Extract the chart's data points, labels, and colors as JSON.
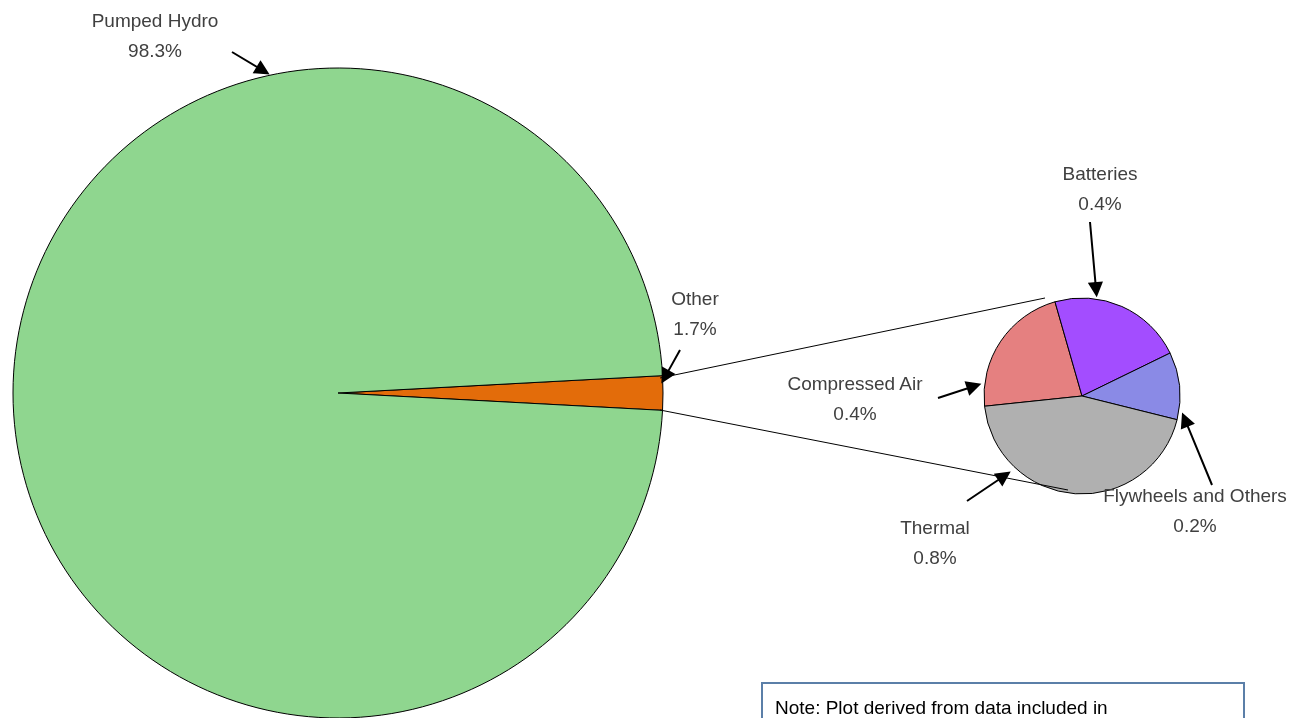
{
  "chart_data": [
    {
      "type": "pie",
      "categories": [
        "Other",
        "Pumped Hydro"
      ],
      "values": [
        1.7,
        98.3
      ],
      "value_labels": [
        "1.7%",
        "98.3%"
      ],
      "colors": [
        "#e36c0a",
        "#8fd68f"
      ]
    },
    {
      "type": "pie",
      "categories": [
        "Compressed Air",
        "Batteries",
        "Flywheels and Others",
        "Thermal"
      ],
      "values": [
        0.4,
        0.4,
        0.2,
        0.8
      ],
      "value_labels": [
        "0.4%",
        "0.4%",
        "0.2%",
        "0.8%"
      ],
      "colors": [
        "#e58080",
        "#a34dff",
        "#8a8ae6",
        "#b0b0b0"
      ],
      "annotations": [
        "Note: Plot derived from data included in"
      ]
    }
  ]
}
